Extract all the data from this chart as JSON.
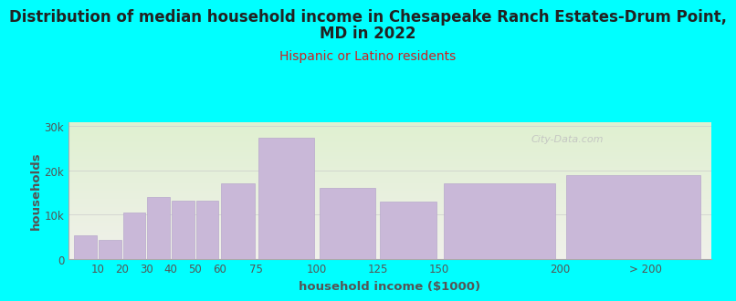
{
  "title_line1": "Distribution of median household income in Chesapeake Ranch Estates-Drum Point,",
  "title_line2": "MD in 2022",
  "subtitle": "Hispanic or Latino residents",
  "xlabel": "household income ($1000)",
  "ylabel": "households",
  "background_color": "#00FFFF",
  "plot_bg_gradient_top": "#dff0d0",
  "plot_bg_gradient_bottom": "#f0f0ea",
  "bar_color": "#c9b8d8",
  "bar_edge_color": "#b8a8cc",
  "categories": [
    "10",
    "20",
    "30",
    "40",
    "50",
    "60",
    "75",
    "100",
    "125",
    "150",
    "200",
    "> 200"
  ],
  "bar_lefts": [
    0,
    10,
    20,
    30,
    40,
    50,
    60,
    75,
    100,
    125,
    150,
    200
  ],
  "bar_widths": [
    10,
    10,
    10,
    10,
    10,
    10,
    15,
    25,
    25,
    25,
    50,
    60
  ],
  "values": [
    5200,
    4200,
    10500,
    14000,
    13200,
    13200,
    17000,
    27500,
    16000,
    13000,
    17000,
    19000
  ],
  "xtick_positions": [
    10,
    20,
    30,
    40,
    50,
    60,
    75,
    100,
    125,
    150,
    200,
    235
  ],
  "xtick_labels": [
    "10",
    "20",
    "30",
    "40",
    "50",
    "60",
    "75",
    "100",
    "125",
    "150",
    "200",
    "> 200"
  ],
  "yticks": [
    0,
    10000,
    20000,
    30000
  ],
  "ytick_labels": [
    "0",
    "10k",
    "20k",
    "30k"
  ],
  "ylim": [
    0,
    31000
  ],
  "xlim": [
    -2,
    262
  ],
  "title_fontsize": 12,
  "subtitle_fontsize": 10,
  "label_fontsize": 9.5,
  "tick_fontsize": 8.5,
  "title_color": "#222222",
  "subtitle_color": "#cc2222",
  "axis_label_color": "#555555",
  "watermark_text": "City-Data.com",
  "watermark_color": "#c0c0c0"
}
